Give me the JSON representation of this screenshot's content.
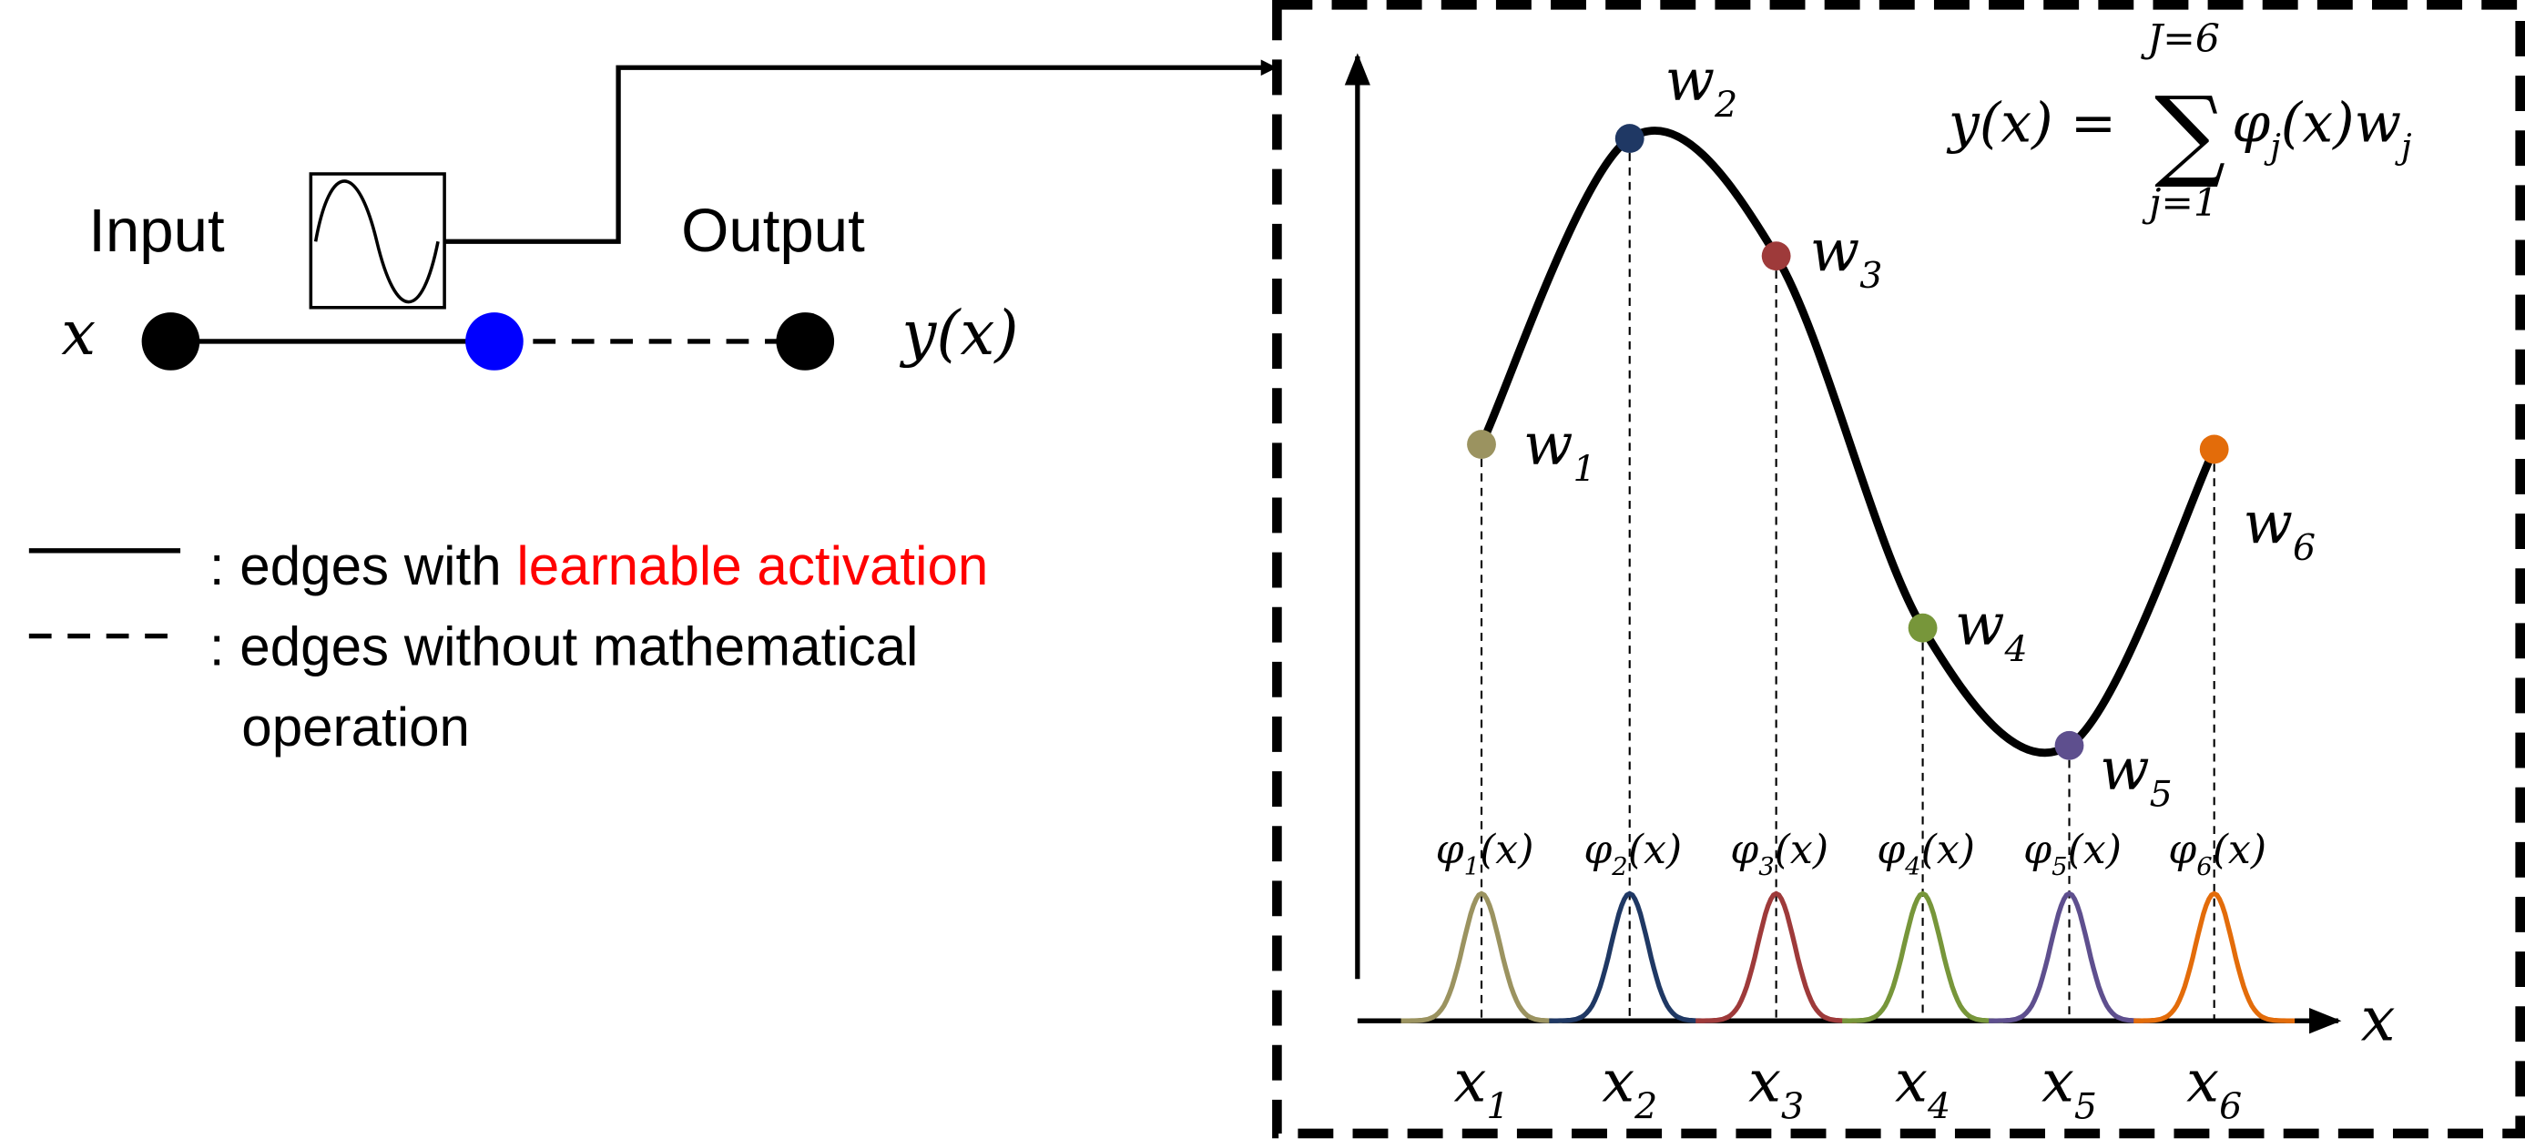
{
  "network": {
    "input_label": "Input",
    "output_label": "Output",
    "input_symbol": "x",
    "output_symbol": "y(x)"
  },
  "legend": {
    "solid": {
      "prefix": ": edges with ",
      "highlight": "learnable activation"
    },
    "dashed": {
      "lines": [
        ": edges without mathematical",
        "operation"
      ]
    }
  },
  "panel": {
    "axis_label": "x",
    "formula": {
      "lhs": "y(x) =",
      "operator": "∑",
      "upper": "J=6",
      "lower": "j=1",
      "basis": "φ",
      "basis_index": "j",
      "argument": "(x)",
      "weight": "w",
      "weight_index": "j"
    },
    "basis_functions": [
      {
        "weight": "w",
        "weight_index": "1",
        "basis": "φ",
        "basis_index": "1",
        "argument": "(x)",
        "center": "x",
        "center_index": "1",
        "color": "#9b9360"
      },
      {
        "weight": "w",
        "weight_index": "2",
        "basis": "φ",
        "basis_index": "2",
        "argument": "(x)",
        "center": "x",
        "center_index": "2",
        "color": "#1f3864"
      },
      {
        "weight": "w",
        "weight_index": "3",
        "basis": "φ",
        "basis_index": "3",
        "argument": "(x)",
        "center": "x",
        "center_index": "3",
        "color": "#9e3a3a"
      },
      {
        "weight": "w",
        "weight_index": "4",
        "basis": "φ",
        "basis_index": "4",
        "argument": "(x)",
        "center": "x",
        "center_index": "4",
        "color": "#77963a"
      },
      {
        "weight": "w",
        "weight_index": "5",
        "basis": "φ",
        "basis_index": "5",
        "argument": "(x)",
        "center": "x",
        "center_index": "5",
        "color": "#5e4f8e"
      },
      {
        "weight": "w",
        "weight_index": "6",
        "basis": "φ",
        "basis_index": "6",
        "argument": "(x)",
        "center": "x",
        "center_index": "6",
        "color": "#e36c0a"
      }
    ]
  }
}
